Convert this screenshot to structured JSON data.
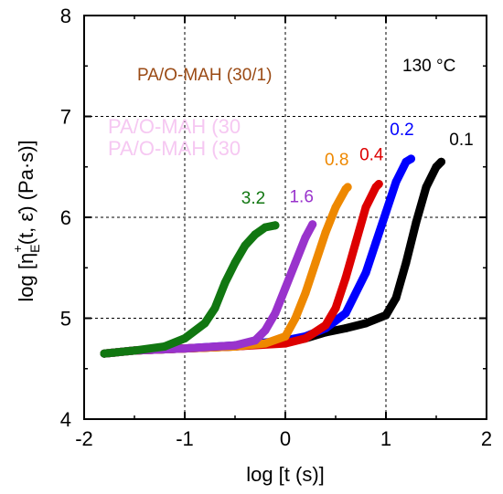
{
  "chart_data": {
    "type": "scatter",
    "title": "PA/O-MAH (30/1)",
    "temperature_label": "130 °C",
    "xlabel": "log [t (s)]",
    "ylabel": "log [η_E^+(t, ε̇) (Pa·s)]",
    "ylabel_parts": {
      "pre": "log [η",
      "sup": "+",
      "sub": "E",
      "post": "(t, ε̇) (Pa·s)]"
    },
    "xlim": [
      -2,
      2
    ],
    "ylim": [
      4,
      8
    ],
    "xticks": [
      "-2",
      "-1",
      "0",
      "1",
      "2"
    ],
    "yticks": [
      "4",
      "5",
      "6",
      "7",
      "8"
    ],
    "grid": true,
    "series": [
      {
        "name": "0.1",
        "color": "#000000",
        "x": [
          -1.8,
          -1.5,
          -1.0,
          -0.5,
          0.0,
          0.2,
          0.4,
          0.6,
          0.8,
          1.0,
          1.1,
          1.2,
          1.3,
          1.4,
          1.5,
          1.55
        ],
        "y": [
          4.65,
          4.68,
          4.7,
          4.72,
          4.76,
          4.8,
          4.86,
          4.9,
          4.95,
          5.03,
          5.2,
          5.55,
          5.95,
          6.3,
          6.5,
          6.55
        ]
      },
      {
        "name": "0.2",
        "color": "#0000ff",
        "x": [
          -1.8,
          -1.5,
          -1.0,
          -0.5,
          0.0,
          0.2,
          0.4,
          0.6,
          0.8,
          0.9,
          1.0,
          1.1,
          1.2,
          1.25
        ],
        "y": [
          4.65,
          4.68,
          4.7,
          4.73,
          4.78,
          4.82,
          4.9,
          5.05,
          5.45,
          5.75,
          6.05,
          6.35,
          6.55,
          6.58
        ]
      },
      {
        "name": "0.4",
        "color": "#dd0000",
        "x": [
          -1.8,
          -1.5,
          -1.0,
          -0.5,
          0.0,
          0.2,
          0.4,
          0.5,
          0.6,
          0.7,
          0.8,
          0.9,
          0.93
        ],
        "y": [
          4.65,
          4.68,
          4.7,
          4.72,
          4.75,
          4.8,
          4.93,
          5.1,
          5.4,
          5.75,
          6.1,
          6.3,
          6.33
        ]
      },
      {
        "name": "0.8",
        "color": "#ee8800",
        "x": [
          -1.8,
          -1.5,
          -1.0,
          -0.5,
          -0.2,
          0.0,
          0.1,
          0.2,
          0.3,
          0.4,
          0.5,
          0.6,
          0.62
        ],
        "y": [
          4.65,
          4.68,
          4.7,
          4.72,
          4.75,
          4.82,
          5.0,
          5.25,
          5.55,
          5.85,
          6.1,
          6.28,
          6.3
        ]
      },
      {
        "name": "1.6",
        "color": "#9933cc",
        "x": [
          -1.8,
          -1.5,
          -1.0,
          -0.5,
          -0.3,
          -0.2,
          -0.1,
          0.0,
          0.1,
          0.2,
          0.27
        ],
        "y": [
          4.65,
          4.68,
          4.7,
          4.73,
          4.78,
          4.88,
          5.05,
          5.3,
          5.55,
          5.8,
          5.93
        ]
      },
      {
        "name": "3.2",
        "color": "#117711",
        "x": [
          -1.8,
          -1.5,
          -1.2,
          -1.0,
          -0.8,
          -0.7,
          -0.6,
          -0.5,
          -0.4,
          -0.3,
          -0.2,
          -0.1
        ],
        "y": [
          4.65,
          4.68,
          4.72,
          4.8,
          4.95,
          5.1,
          5.35,
          5.55,
          5.72,
          5.83,
          5.9,
          5.92
        ]
      }
    ],
    "ghost_text": [
      "PA/O-MAH (30",
      "PA/O-MAH (30"
    ]
  }
}
